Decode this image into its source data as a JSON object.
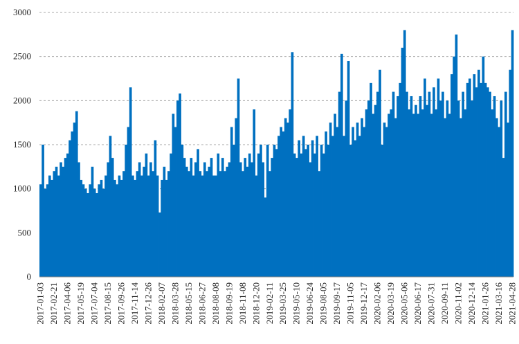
{
  "chart_data": {
    "type": "bar",
    "color": "#0070c0",
    "categories": [
      "2017-01-03",
      null,
      null,
      null,
      null,
      null,
      "2017-02-21",
      null,
      null,
      null,
      null,
      null,
      "2017-04-06",
      null,
      null,
      null,
      null,
      null,
      "2017-05-19",
      null,
      null,
      null,
      null,
      null,
      "2017-07-04",
      null,
      null,
      null,
      null,
      null,
      "2017-08-15",
      null,
      null,
      null,
      null,
      null,
      "2017-09-26",
      null,
      null,
      null,
      null,
      null,
      "2017-11-14",
      null,
      null,
      null,
      null,
      null,
      "2017-12-26",
      null,
      null,
      null,
      null,
      null,
      "2018-02-07",
      null,
      null,
      null,
      null,
      null,
      "2018-03-28",
      null,
      null,
      null,
      null,
      null,
      "2018-05-15",
      null,
      null,
      null,
      null,
      null,
      "2018-06-27",
      null,
      null,
      null,
      null,
      null,
      "2018-08-08",
      null,
      null,
      null,
      null,
      null,
      "2018-09-19",
      null,
      null,
      null,
      null,
      null,
      "2018-11-08",
      null,
      null,
      null,
      null,
      null,
      "2018-12-20",
      null,
      null,
      null,
      null,
      null,
      "2019-02-11",
      null,
      null,
      null,
      null,
      null,
      "2019-03-25",
      null,
      null,
      null,
      null,
      null,
      "2019-05-10",
      null,
      null,
      null,
      null,
      null,
      "2019-06-24",
      null,
      null,
      null,
      null,
      null,
      "2019-08-05",
      null,
      null,
      null,
      null,
      null,
      "2019-09-17",
      null,
      null,
      null,
      null,
      null,
      "2019-11-05",
      null,
      null,
      null,
      null,
      null,
      "2019-12-17",
      null,
      null,
      null,
      null,
      null,
      "2020-02-06",
      null,
      null,
      null,
      null,
      null,
      "2020-03-19",
      null,
      null,
      null,
      null,
      null,
      "2020-05-06",
      null,
      null,
      null,
      null,
      null,
      "2020-06-17",
      null,
      null,
      null,
      null,
      null,
      "2020-07-31",
      null,
      null,
      null,
      null,
      null,
      "2020-09-11",
      null,
      null,
      null,
      null,
      null,
      "2020-11-02",
      null,
      null,
      null,
      null,
      null,
      "2020-12-14",
      null,
      null,
      null,
      null,
      null,
      "2021-01-26",
      null,
      null,
      null,
      null,
      null,
      "2021-03-16",
      null,
      null,
      null,
      null,
      null,
      "2021-04-28"
    ],
    "values": [
      1050,
      1500,
      1000,
      1050,
      1150,
      1100,
      1200,
      1250,
      1150,
      1300,
      1250,
      1350,
      1400,
      1550,
      1650,
      1750,
      1880,
      1300,
      1100,
      1050,
      1000,
      950,
      1050,
      1250,
      1000,
      950,
      1050,
      1100,
      1000,
      1150,
      1300,
      1600,
      1350,
      1100,
      1050,
      1150,
      1100,
      1200,
      1500,
      1700,
      2150,
      1150,
      1100,
      1200,
      1300,
      1150,
      1250,
      1400,
      1150,
      1300,
      1200,
      1550,
      1150,
      730,
      1100,
      1250,
      1100,
      1200,
      1400,
      1850,
      1700,
      2000,
      2080,
      1500,
      1350,
      1250,
      1200,
      1350,
      1150,
      1300,
      1450,
      1200,
      1150,
      1300,
      1200,
      1250,
      1350,
      1150,
      1150,
      1400,
      1200,
      1350,
      1200,
      1250,
      1300,
      1700,
      1500,
      1800,
      2250,
      1300,
      1200,
      1350,
      1250,
      1400,
      1300,
      1900,
      1150,
      1400,
      1500,
      1300,
      900,
      1500,
      1200,
      1350,
      1500,
      1450,
      1600,
      1700,
      1650,
      1800,
      1750,
      1900,
      2550,
      1400,
      1350,
      1550,
      1400,
      1600,
      1450,
      1500,
      1300,
      1550,
      1400,
      1600,
      1200,
      1500,
      1400,
      1650,
      1500,
      1750,
      1600,
      1850,
      1700,
      2100,
      2530,
      1600,
      2000,
      2450,
      1500,
      1700,
      1550,
      1750,
      1600,
      1800,
      1700,
      1900,
      2000,
      2200,
      1850,
      1950,
      2100,
      2350,
      1500,
      1750,
      1700,
      1850,
      1900,
      2100,
      1800,
      2050,
      2200,
      2600,
      2800,
      2100,
      1900,
      2050,
      1850,
      1950,
      1850,
      2050,
      1900,
      2250,
      1950,
      2100,
      1850,
      2150,
      1900,
      2250,
      2000,
      2100,
      1800,
      2000,
      1850,
      2300,
      2500,
      2750,
      2000,
      1800,
      2100,
      1900,
      2200,
      2250,
      2000,
      2300,
      2150,
      2350,
      2200,
      2500,
      2200,
      2150,
      2100,
      1900,
      2050,
      1800,
      1700,
      2000,
      1350,
      2100,
      1750,
      2350,
      2800
    ],
    "ylim": [
      0,
      3000
    ],
    "yticks": [
      0,
      500,
      1000,
      1500,
      2000,
      2500,
      3000
    ],
    "grid": true
  }
}
